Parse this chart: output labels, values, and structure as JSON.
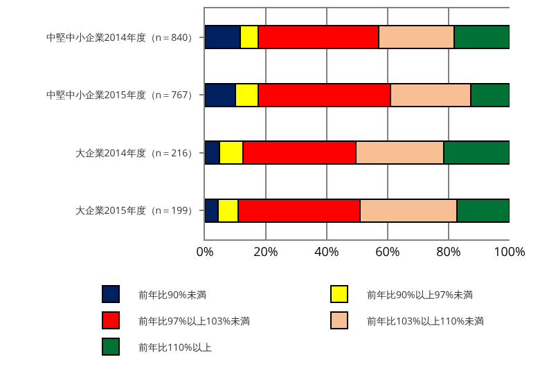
{
  "chart_data": {
    "type": "bar",
    "orientation": "horizontal",
    "stacked": true,
    "categories": [
      "中堅中小企業2014年度（n＝840）",
      "中堅中小企業2015年度（n＝767）",
      "大企業2014年度（n＝216）",
      "大企業2015年度（n＝199）"
    ],
    "series": [
      {
        "name": "前年比90%未満",
        "color": "#002060",
        "values": [
          11.5,
          10.1,
          4.8,
          4.4
        ]
      },
      {
        "name": "前年比90%以上97%未満",
        "color": "#ffff00",
        "values": [
          6,
          7.4,
          7.6,
          6.6
        ]
      },
      {
        "name": "前年比97%以上103%未満",
        "color": "#ff0000",
        "values": [
          39.5,
          43.4,
          37.1,
          39.8
        ]
      },
      {
        "name": "前年比103%以上110%未満",
        "color": "#f8bf95",
        "values": [
          24.9,
          26.4,
          29,
          32
        ]
      },
      {
        "name": "前年比110%以上",
        "color": "#007236",
        "values": [
          18.1,
          12.7,
          21.5,
          17.2
        ]
      }
    ],
    "xlim": [
      0,
      100
    ],
    "xticks": [
      {
        "value": 0,
        "label": "0%"
      },
      {
        "value": 20,
        "label": "20%"
      },
      {
        "value": 40,
        "label": "40%"
      },
      {
        "value": 60,
        "label": "60%"
      },
      {
        "value": 80,
        "label": "80%"
      },
      {
        "value": 100,
        "label": "100%"
      }
    ],
    "grid": "x",
    "legend": "bottom"
  }
}
